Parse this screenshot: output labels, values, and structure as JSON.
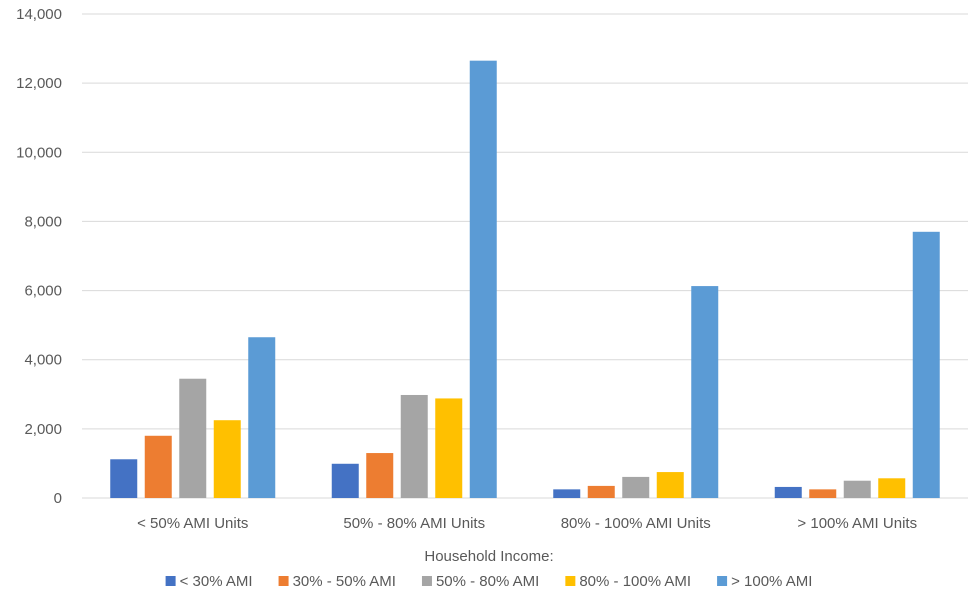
{
  "chart_data": {
    "type": "bar",
    "title": "",
    "xlabel": "",
    "ylabel": "",
    "ylim": [
      0,
      14000
    ],
    "yticks": [
      0,
      2000,
      4000,
      6000,
      8000,
      10000,
      12000,
      14000
    ],
    "ytick_labels": [
      "0",
      "2,000",
      "4,000",
      "6,000",
      "8,000",
      "10,000",
      "12,000",
      "14,000"
    ],
    "grid": true,
    "legend_title": "Household Income:",
    "legend_position": "bottom",
    "categories": [
      "< 50% AMI Units",
      "50% - 80% AMI Units",
      "80% - 100% AMI Units",
      "> 100% AMI Units"
    ],
    "series": [
      {
        "name": "< 30% AMI",
        "color": "#4472c4",
        "values": [
          1120,
          990,
          250,
          320
        ]
      },
      {
        "name": "30% - 50% AMI",
        "color": "#ed7d31",
        "values": [
          1800,
          1300,
          350,
          250
        ]
      },
      {
        "name": "50% - 80% AMI",
        "color": "#a5a5a5",
        "values": [
          3450,
          2980,
          610,
          500
        ]
      },
      {
        "name": "80% - 100% AMI",
        "color": "#ffc000",
        "values": [
          2250,
          2880,
          750,
          570
        ]
      },
      {
        "name": "> 100% AMI",
        "color": "#5b9bd5",
        "values": [
          4650,
          12650,
          6130,
          7700
        ]
      }
    ]
  }
}
